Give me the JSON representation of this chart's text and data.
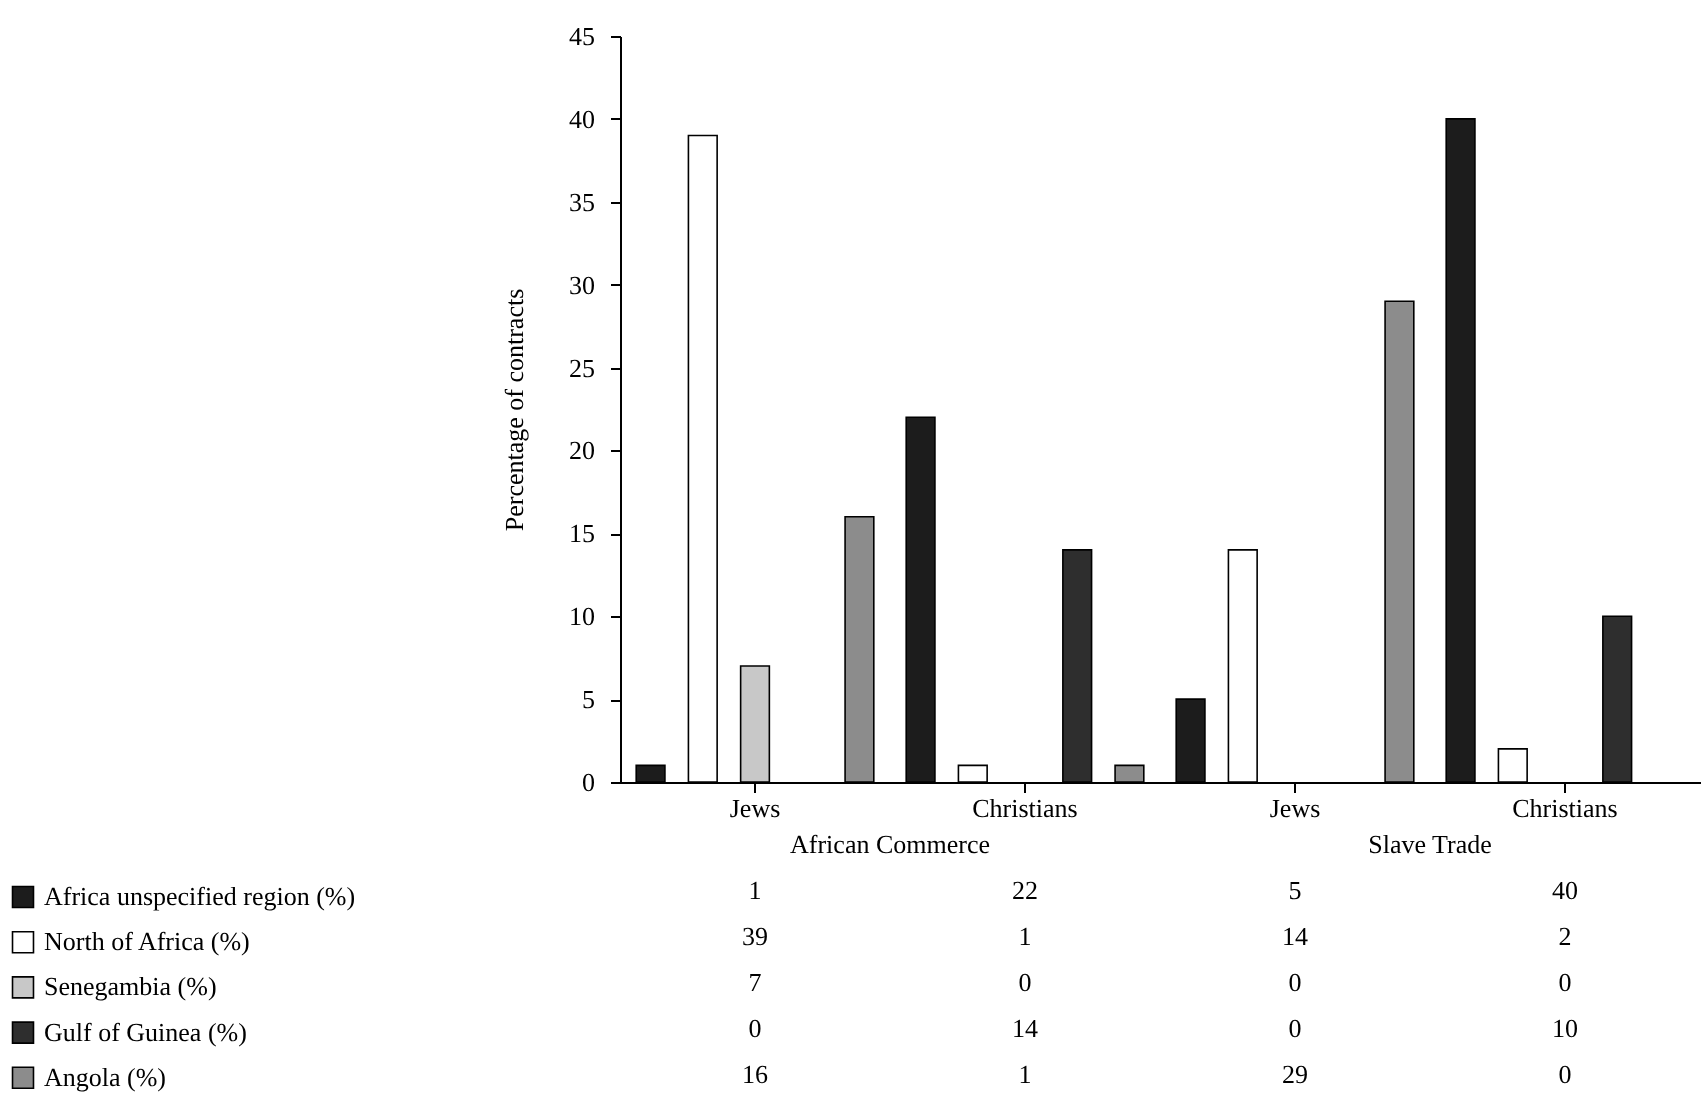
{
  "chart_data": {
    "type": "bar",
    "ylabel": "Percentage of contracts",
    "categories": [
      "Jews",
      "Christians",
      "Jews",
      "Christians"
    ],
    "annotations": [
      "African Commerce",
      "Slave Trade"
    ],
    "series": [
      {
        "name": "Africa unspecified region (%)",
        "color": "#1c1c1c",
        "values": [
          1,
          22,
          5,
          40
        ]
      },
      {
        "name": "North of Africa (%)",
        "color": "#ffffff",
        "values": [
          39,
          1,
          14,
          2
        ]
      },
      {
        "name": "Senegambia (%)",
        "color": "#c8c8c8",
        "values": [
          7,
          0,
          0,
          0
        ]
      },
      {
        "name": "Gulf of Guinea (%)",
        "color": "#2e2e2e",
        "values": [
          0,
          14,
          0,
          10
        ]
      },
      {
        "name": "Angola (%)",
        "color": "#8c8c8c",
        "values": [
          16,
          1,
          29,
          0
        ]
      }
    ],
    "ylim": [
      0,
      45
    ],
    "yticks": [
      0,
      5,
      10,
      15,
      20,
      25,
      30,
      35,
      40,
      45
    ],
    "data_labels": true,
    "legend": "bottom",
    "grid": false
  }
}
